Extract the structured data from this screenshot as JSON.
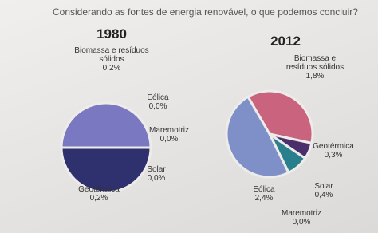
{
  "question": "Considerando as fontes de energia renovável, o que podemos concluir?",
  "chart_data": [
    {
      "type": "pie",
      "title": "1980",
      "categories": [
        "Biomassa e resíduos sólidos",
        "Eólica",
        "Maremotriz",
        "Solar",
        "Geotérmica"
      ],
      "values": [
        0.2,
        0.0,
        0.0,
        0.0,
        0.2
      ],
      "value_labels": [
        "0,2%",
        "0,0%",
        "0,0%",
        "0,0%",
        "0,2%"
      ],
      "colors": [
        "#7b78c2",
        "#c7c3e0",
        "#a9a6d0",
        "#5a5a9c",
        "#2f306e"
      ]
    },
    {
      "type": "pie",
      "title": "2012",
      "categories": [
        "Biomassa e resíduos sólidos",
        "Geotérmica",
        "Solar",
        "Maremotriz",
        "Eólica"
      ],
      "values": [
        1.8,
        0.3,
        0.4,
        0.0,
        2.4
      ],
      "value_labels": [
        "1,8%",
        "0,3%",
        "0,4%",
        "0,0%",
        "2,4%"
      ],
      "colors": [
        "#c9637e",
        "#4b2f6c",
        "#2a7f8c",
        "#9ec7cf",
        "#7f90c9"
      ]
    }
  ]
}
